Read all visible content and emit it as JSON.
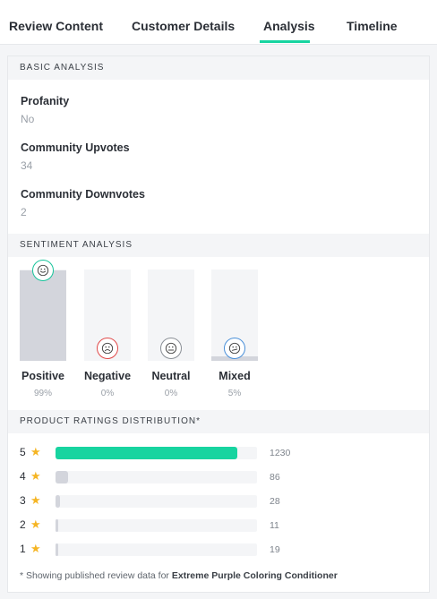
{
  "tabs": [
    {
      "label": "Review Content"
    },
    {
      "label": "Customer Details"
    },
    {
      "label": "Analysis"
    },
    {
      "label": "Timeline"
    }
  ],
  "active_tab": "Analysis",
  "basic": {
    "heading": "BASIC ANALYSIS",
    "fields": [
      {
        "label": "Profanity",
        "value": "No"
      },
      {
        "label": "Community Upvotes",
        "value": "34"
      },
      {
        "label": "Community Downvotes",
        "value": "2"
      }
    ]
  },
  "sentiment": {
    "heading": "SENTIMENT ANALYSIS",
    "items": [
      {
        "label": "Positive",
        "percent_text": "99%",
        "level": 99,
        "face": "smile",
        "color": "#17c39a"
      },
      {
        "label": "Negative",
        "percent_text": "0%",
        "level": 0,
        "face": "frown",
        "color": "#e04a4a"
      },
      {
        "label": "Neutral",
        "percent_text": "0%",
        "level": 0,
        "face": "neutral",
        "color": "#8a8f96"
      },
      {
        "label": "Mixed",
        "percent_text": "5%",
        "level": 5,
        "face": "mixed",
        "color": "#4a90d9"
      }
    ]
  },
  "ratings": {
    "heading": "PRODUCT RATINGS DISTRIBUTION*",
    "star_icon": "star-icon",
    "star_color": "#f5b524",
    "max": 1230,
    "rows": [
      {
        "stars": "5",
        "count": 1230,
        "count_text": "1230",
        "color": "#17d4a0"
      },
      {
        "stars": "4",
        "count": 86,
        "count_text": "86",
        "color": "#d3d5dc"
      },
      {
        "stars": "3",
        "count": 28,
        "count_text": "28",
        "color": "#d3d5dc"
      },
      {
        "stars": "2",
        "count": 11,
        "count_text": "11",
        "color": "#d3d5dc"
      },
      {
        "stars": "1",
        "count": 19,
        "count_text": "19",
        "color": "#d3d5dc"
      }
    ]
  },
  "footnote": {
    "prefix": "* Showing published review data for ",
    "product": "Extreme Purple Coloring Conditioner"
  }
}
